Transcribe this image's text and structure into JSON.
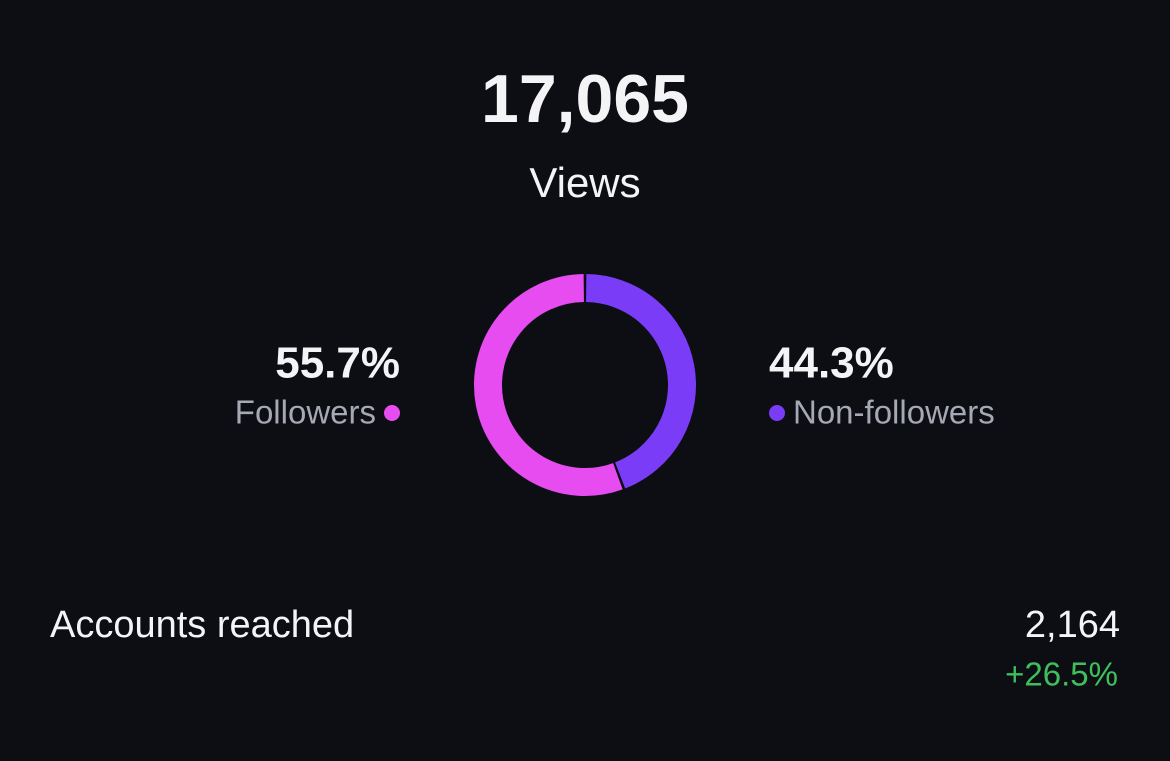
{
  "header": {
    "value": "17,065",
    "label": "Views"
  },
  "chart_data": {
    "type": "donut",
    "categories": [
      "Followers",
      "Non-followers"
    ],
    "values": [
      55.7,
      44.3
    ],
    "value_labels": [
      "55.7%",
      "44.3%"
    ],
    "colors": [
      "#e64cf0",
      "#7a3cf7"
    ]
  },
  "stats": {
    "label": "Accounts reached",
    "value": "2,164",
    "change": "+26.5%"
  }
}
